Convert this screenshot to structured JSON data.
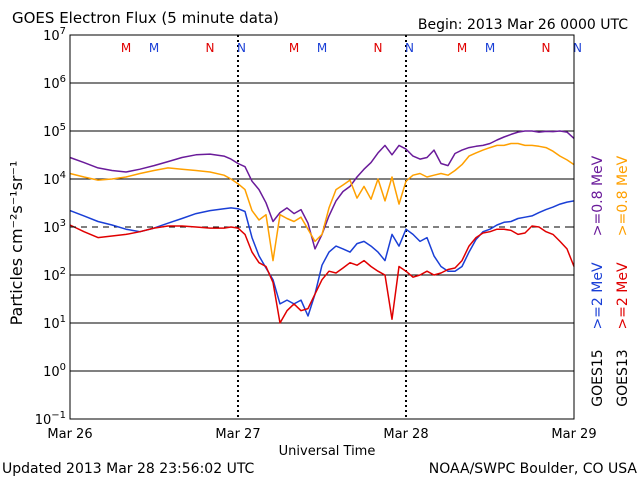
{
  "header": {
    "title": "GOES Electron Flux (5 minute data)",
    "begin": "Begin: 2013 Mar 26 0000 UTC"
  },
  "footer": {
    "updated": "Updated 2013 Mar 28 23:56:02 UTC",
    "credit": "NOAA/SWPC Boulder, CO USA"
  },
  "legend": {
    "goes15": "GOES15",
    "goes13": "GOES13",
    "series_labels": [
      {
        "text": ">=0.8 MeV",
        "color": "#6a1b9a"
      },
      {
        "text": ">=0.8 MeV",
        "color": "#ffa000"
      },
      {
        "text": ">=2 MeV",
        "color": "#1a3fd6"
      },
      {
        "text": ">=2 MeV",
        "color": "#e00000"
      }
    ]
  },
  "colors": {
    "purple": "#6a1b9a",
    "orange": "#ffa000",
    "blue": "#1a3fd6",
    "red": "#e00000",
    "mark_red": "#e00000",
    "mark_blue": "#1a3fd6"
  },
  "chart_data": {
    "type": "line",
    "xlabel": "Universal Time",
    "ylabel": "Particles cm⁻²s⁻¹sr⁻¹",
    "x_ticks": [
      "Mar 26",
      "Mar 27",
      "Mar 28",
      "Mar 29"
    ],
    "xlim": [
      0,
      72
    ],
    "ylim_exp": [
      -1,
      7
    ],
    "y_scale": "log",
    "y_ticks": [
      {
        "base": "10",
        "exp": "7"
      },
      {
        "base": "10",
        "exp": "6"
      },
      {
        "base": "10",
        "exp": "5"
      },
      {
        "base": "10",
        "exp": "4"
      },
      {
        "base": "10",
        "exp": "3"
      },
      {
        "base": "10",
        "exp": "2"
      },
      {
        "base": "10",
        "exp": "1"
      },
      {
        "base": "10",
        "exp": "0"
      },
      {
        "base": "10",
        "exp": "−1"
      }
    ],
    "threshold_exp": 3,
    "markers": [
      {
        "label": "M",
        "x": 8,
        "color": "red"
      },
      {
        "label": "M",
        "x": 12,
        "color": "blue"
      },
      {
        "label": "N",
        "x": 20,
        "color": "red"
      },
      {
        "label": "N",
        "x": 24.5,
        "color": "blue"
      },
      {
        "label": "M",
        "x": 32,
        "color": "red"
      },
      {
        "label": "M",
        "x": 36,
        "color": "blue"
      },
      {
        "label": "N",
        "x": 44,
        "color": "red"
      },
      {
        "label": "N",
        "x": 48.5,
        "color": "blue"
      },
      {
        "label": "M",
        "x": 56,
        "color": "red"
      },
      {
        "label": "M",
        "x": 60,
        "color": "blue"
      },
      {
        "label": "N",
        "x": 68,
        "color": "red"
      },
      {
        "label": "N",
        "x": 72.5,
        "color": "blue"
      }
    ],
    "series": [
      {
        "name": "GOES15 >=0.8 MeV",
        "color": "purple",
        "x": [
          0,
          2,
          4,
          6,
          8,
          10,
          12,
          14,
          16,
          18,
          20,
          22,
          23,
          24,
          25,
          26,
          27,
          28,
          29,
          30,
          31,
          32,
          33,
          34,
          35,
          36,
          37,
          38,
          39,
          40,
          41,
          42,
          43,
          44,
          45,
          46,
          47,
          48,
          49,
          50,
          51,
          52,
          53,
          54,
          55,
          56,
          57,
          58,
          59,
          60,
          61,
          62,
          63,
          64,
          65,
          66,
          67,
          68,
          69,
          70,
          71,
          72
        ],
        "y": [
          28000,
          22000,
          17000,
          15000,
          14000,
          16000,
          19000,
          23000,
          28000,
          32000,
          33000,
          30000,
          26000,
          21000,
          18000,
          9000,
          6000,
          3200,
          1300,
          2000,
          2500,
          1900,
          2300,
          1200,
          350,
          700,
          1700,
          3500,
          5500,
          7000,
          11000,
          16000,
          22000,
          35000,
          50000,
          32000,
          50000,
          42000,
          30000,
          26000,
          28000,
          40000,
          21000,
          19000,
          34000,
          40000,
          45000,
          48000,
          50000,
          55000,
          65000,
          75000,
          85000,
          95000,
          100000,
          100000,
          95000,
          98000,
          97000,
          100000,
          95000,
          70000
        ]
      },
      {
        "name": "GOES13 >=0.8 MeV",
        "color": "orange",
        "x": [
          0,
          2,
          4,
          6,
          8,
          10,
          12,
          14,
          16,
          18,
          20,
          22,
          23,
          24,
          25,
          26,
          27,
          28,
          29,
          30,
          31,
          32,
          33,
          34,
          35,
          36,
          37,
          38,
          39,
          40,
          41,
          42,
          43,
          44,
          45,
          46,
          47,
          48,
          49,
          50,
          51,
          52,
          53,
          54,
          55,
          56,
          57,
          58,
          59,
          60,
          61,
          62,
          63,
          64,
          65,
          66,
          67,
          68,
          69,
          70,
          71,
          72
        ],
        "y": [
          13000,
          11000,
          9500,
          10000,
          11000,
          13000,
          15000,
          17000,
          16000,
          15000,
          14000,
          12000,
          10000,
          8000,
          6000,
          2200,
          1400,
          1800,
          200,
          1800,
          1500,
          1300,
          1600,
          900,
          500,
          700,
          2500,
          6000,
          7500,
          9500,
          4000,
          7000,
          3800,
          10000,
          3500,
          11000,
          3000,
          9000,
          12000,
          13000,
          11000,
          12000,
          13000,
          12000,
          15000,
          20000,
          30000,
          35000,
          40000,
          45000,
          50000,
          50000,
          55000,
          55000,
          50000,
          50000,
          48000,
          45000,
          38000,
          30000,
          25000,
          20000
        ]
      },
      {
        "name": "GOES15 >=2 MeV",
        "color": "blue",
        "x": [
          0,
          2,
          4,
          6,
          8,
          10,
          12,
          14,
          16,
          18,
          20,
          22,
          23,
          24,
          25,
          26,
          27,
          28,
          29,
          30,
          31,
          32,
          33,
          34,
          35,
          36,
          37,
          38,
          39,
          40,
          41,
          42,
          43,
          44,
          45,
          46,
          47,
          48,
          49,
          50,
          51,
          52,
          53,
          54,
          55,
          56,
          57,
          58,
          59,
          60,
          61,
          62,
          63,
          64,
          65,
          66,
          67,
          68,
          69,
          70,
          71,
          72
        ],
        "y": [
          2200,
          1700,
          1300,
          1100,
          900,
          800,
          950,
          1200,
          1500,
          1900,
          2200,
          2400,
          2500,
          2400,
          2100,
          600,
          250,
          140,
          80,
          25,
          30,
          25,
          30,
          14,
          40,
          160,
          300,
          400,
          350,
          300,
          450,
          500,
          400,
          300,
          200,
          700,
          400,
          900,
          700,
          500,
          600,
          250,
          150,
          120,
          120,
          150,
          300,
          550,
          800,
          900,
          1100,
          1250,
          1300,
          1500,
          1600,
          1700,
          2000,
          2300,
          2600,
          3000,
          3300,
          3500
        ]
      },
      {
        "name": "GOES13 >=2 MeV",
        "color": "red",
        "x": [
          0,
          2,
          4,
          6,
          8,
          10,
          12,
          14,
          16,
          18,
          20,
          22,
          23,
          24,
          25,
          26,
          27,
          28,
          29,
          30,
          31,
          32,
          33,
          34,
          35,
          36,
          37,
          38,
          39,
          40,
          41,
          42,
          43,
          44,
          45,
          46,
          47,
          48,
          49,
          50,
          51,
          52,
          53,
          54,
          55,
          56,
          57,
          58,
          59,
          60,
          61,
          62,
          63,
          64,
          65,
          66,
          67,
          68,
          69,
          70,
          71,
          72
        ],
        "y": [
          1100,
          800,
          600,
          650,
          700,
          800,
          950,
          1050,
          1050,
          1000,
          950,
          950,
          1000,
          950,
          700,
          300,
          180,
          150,
          70,
          10,
          18,
          25,
          18,
          20,
          40,
          80,
          120,
          110,
          140,
          180,
          160,
          200,
          150,
          120,
          100,
          12,
          150,
          120,
          90,
          100,
          120,
          100,
          110,
          130,
          140,
          200,
          400,
          600,
          750,
          800,
          900,
          900,
          850,
          700,
          750,
          1050,
          1000,
          800,
          700,
          500,
          350,
          150
        ]
      }
    ]
  }
}
